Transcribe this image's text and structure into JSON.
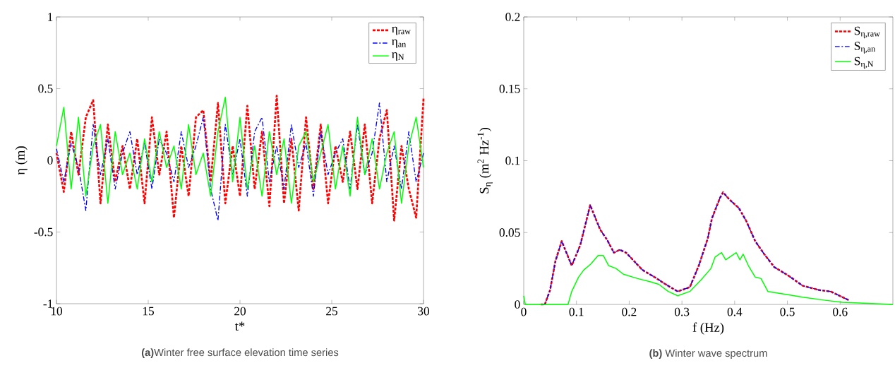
{
  "chart_data": [
    {
      "type": "line",
      "title": "**(a)**Winter free surface elevation time series",
      "xlabel": "t*",
      "ylabel": "η (m)",
      "x": [
        10,
        10.4,
        10.8,
        11.2,
        11.6,
        12,
        12.4,
        12.8,
        13.2,
        13.6,
        14,
        14.4,
        14.8,
        15.2,
        15.6,
        16,
        16.4,
        16.8,
        17.2,
        17.6,
        18,
        18.4,
        18.8,
        19.2,
        19.6,
        20,
        20.4,
        20.8,
        21.2,
        21.6,
        22,
        22.4,
        22.8,
        23.2,
        23.6,
        24,
        24.4,
        24.8,
        25.2,
        25.6,
        26,
        26.4,
        26.8,
        27.2,
        27.6,
        28,
        28.4,
        28.8,
        29.2,
        29.6,
        30
      ],
      "series": [
        {
          "name": "η$_{raw}$",
          "color": "#ff0000",
          "line_style": "dashed",
          "values": [
            0.05,
            -0.22,
            0.2,
            -0.1,
            0.3,
            0.42,
            -0.3,
            0.25,
            -0.15,
            0.1,
            -0.2,
            0.15,
            -0.3,
            0.3,
            -0.1,
            0.2,
            -0.4,
            0.1,
            -0.25,
            0.3,
            0.35,
            -0.15,
            0.4,
            -0.3,
            0.1,
            -0.25,
            0.38,
            -0.2,
            0.2,
            -0.32,
            0.45,
            -0.3,
            0.15,
            -0.35,
            0.3,
            -0.2,
            0.25,
            -0.3,
            0.1,
            -0.15,
            0.2,
            -0.2,
            0.25,
            -0.3,
            0.15,
            0.35,
            -0.42,
            0.1,
            -0.2,
            -0.4,
            0.43
          ]
        },
        {
          "name": "η$_{an}$",
          "color": "#0000ff",
          "line_style": "dashdot",
          "values": [
            0.08,
            -0.15,
            0.12,
            -0.05,
            -0.35,
            0.25,
            -0.1,
            0.15,
            -0.2,
            0.05,
            0.2,
            -0.1,
            0.12,
            -0.2,
            0.15,
            0.05,
            -0.15,
            0.2,
            -0.05,
            0.1,
            0.3,
            -0.2,
            -0.42,
            0.25,
            -0.1,
            0.15,
            -0.25,
            0.2,
            0.3,
            -0.15,
            0.1,
            -0.2,
            0.25,
            -0.05,
            0.12,
            -0.25,
            0.2,
            -0.1,
            0.05,
            0.15,
            -0.2,
            0.25,
            -0.1,
            0.05,
            0.4,
            -0.15,
            0.1,
            -0.2,
            0.2,
            -0.15,
            0.05
          ]
        },
        {
          "name": "η$_{N}$",
          "color": "#00ff00",
          "line_style": "solid",
          "values": [
            0.1,
            0.37,
            -0.2,
            0.3,
            -0.25,
            0.1,
            0.25,
            -0.3,
            0.2,
            -0.1,
            0.05,
            -0.2,
            0.15,
            -0.15,
            0.2,
            -0.05,
            0.1,
            -0.2,
            0.25,
            -0.1,
            0.05,
            -0.25,
            0.2,
            0.44,
            -0.15,
            0.3,
            -0.2,
            0.1,
            -0.25,
            0.2,
            -0.1,
            0.15,
            -0.3,
            0.1,
            0.2,
            -0.15,
            0.05,
            0.25,
            -0.2,
            0.1,
            -0.25,
            0.3,
            -0.1,
            0.15,
            -0.2,
            0.05,
            0.2,
            -0.3,
            0.1,
            0.3,
            -0.05
          ]
        }
      ],
      "xlim": [
        10,
        30
      ],
      "ylim": [
        -1,
        1
      ],
      "xticks": [
        10,
        15,
        20,
        25,
        30
      ],
      "yticks": [
        -1,
        -0.5,
        0,
        0.5,
        1
      ],
      "legend": "top right",
      "grid": false
    },
    {
      "type": "line",
      "title": "**(b)** Winter wave spectrum",
      "xlabel": "f (Hz)",
      "ylabel": "S$_{η}$ (m$^{2}$ Hz$^{-1}$)",
      "series": [
        {
          "name": "S$_{η,raw}$",
          "color": "#ff0000",
          "line_style": "dashed",
          "x": [
            0.03,
            0.04,
            0.05,
            0.06,
            0.072,
            0.091,
            0.107,
            0.126,
            0.145,
            0.158,
            0.171,
            0.182,
            0.194,
            0.207,
            0.225,
            0.248,
            0.269,
            0.292,
            0.315,
            0.332,
            0.349,
            0.357,
            0.372,
            0.378,
            0.39,
            0.408,
            0.422,
            0.439,
            0.456,
            0.475,
            0.502,
            0.529,
            0.56,
            0.582,
            0.616
          ],
          "values": [
            0,
            0,
            0.01,
            0.03,
            0.044,
            0.027,
            0.041,
            0.069,
            0.052,
            0.045,
            0.036,
            0.038,
            0.036,
            0.031,
            0.024,
            0.019,
            0.014,
            0.009,
            0.012,
            0.027,
            0.046,
            0.06,
            0.074,
            0.078,
            0.073,
            0.067,
            0.058,
            0.044,
            0.035,
            0.026,
            0.02,
            0.013,
            0.01,
            0.009,
            0.003
          ]
        },
        {
          "name": "S$_{η,an}$",
          "color": "#0000ff",
          "line_style": "dashdot",
          "x": [
            0.03,
            0.04,
            0.05,
            0.06,
            0.072,
            0.091,
            0.107,
            0.126,
            0.145,
            0.158,
            0.171,
            0.182,
            0.194,
            0.207,
            0.225,
            0.248,
            0.269,
            0.292,
            0.315,
            0.332,
            0.349,
            0.357,
            0.372,
            0.378,
            0.39,
            0.408,
            0.422,
            0.439,
            0.456,
            0.475,
            0.502,
            0.529,
            0.56,
            0.582,
            0.616
          ],
          "values": [
            0,
            0,
            0.01,
            0.03,
            0.044,
            0.027,
            0.041,
            0.069,
            0.052,
            0.045,
            0.036,
            0.038,
            0.036,
            0.031,
            0.024,
            0.019,
            0.014,
            0.009,
            0.012,
            0.027,
            0.046,
            0.06,
            0.074,
            0.078,
            0.073,
            0.067,
            0.058,
            0.044,
            0.035,
            0.026,
            0.02,
            0.013,
            0.01,
            0.009,
            0.003
          ]
        },
        {
          "name": "S$_{η,N}$",
          "color": "#00ff00",
          "line_style": "solid",
          "x": [
            0,
            0.003,
            0.084,
            0.091,
            0.104,
            0.114,
            0.127,
            0.141,
            0.151,
            0.161,
            0.175,
            0.189,
            0.216,
            0.238,
            0.256,
            0.274,
            0.292,
            0.315,
            0.336,
            0.355,
            0.363,
            0.375,
            0.383,
            0.403,
            0.41,
            0.416,
            0.426,
            0.439,
            0.45,
            0.463,
            0.497,
            0.529,
            0.569,
            0.604,
            0.7
          ],
          "values": [
            0.006,
            0,
            0,
            0.009,
            0.019,
            0.024,
            0.028,
            0.034,
            0.034,
            0.027,
            0.025,
            0.021,
            0.018,
            0.016,
            0.014,
            0.009,
            0.006,
            0.009,
            0.017,
            0.025,
            0.033,
            0.036,
            0.031,
            0.036,
            0.031,
            0.035,
            0.027,
            0.019,
            0.018,
            0.009,
            0.007,
            0.005,
            0.003,
            0.0015,
            0
          ]
        }
      ],
      "xlim": [
        0,
        0.7
      ],
      "ylim": [
        0,
        0.2
      ],
      "xticks": [
        0,
        0.1,
        0.2,
        0.3,
        0.4,
        0.5,
        0.6
      ],
      "yticks": [
        0,
        0.05,
        0.1,
        0.15,
        0.2
      ],
      "legend": "top right",
      "grid": false
    }
  ]
}
